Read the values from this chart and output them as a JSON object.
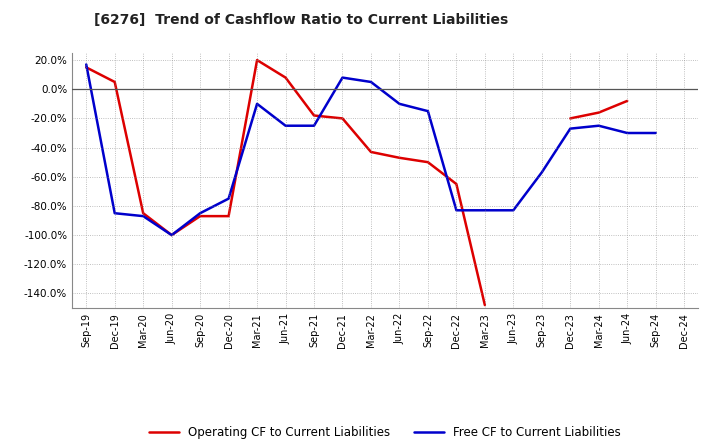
{
  "title": "[6276]  Trend of Cashflow Ratio to Current Liabilities",
  "x_labels": [
    "Sep-19",
    "Dec-19",
    "Mar-20",
    "Jun-20",
    "Sep-20",
    "Dec-20",
    "Mar-21",
    "Jun-21",
    "Sep-21",
    "Dec-21",
    "Mar-22",
    "Jun-22",
    "Sep-22",
    "Dec-22",
    "Mar-23",
    "Jun-23",
    "Sep-23",
    "Dec-23",
    "Mar-24",
    "Jun-24",
    "Sep-24",
    "Dec-24"
  ],
  "operating_cf": [
    15.0,
    5.0,
    -85.0,
    -100.0,
    -87.0,
    -87.0,
    20.0,
    8.0,
    -18.0,
    -20.0,
    -43.0,
    -47.0,
    -50.0,
    -65.0,
    -148.0,
    null,
    null,
    -20.0,
    -16.0,
    -8.0,
    null,
    null
  ],
  "free_cf": [
    17.0,
    -85.0,
    -87.0,
    -100.0,
    -85.0,
    -75.0,
    -10.0,
    -25.0,
    -25.0,
    8.0,
    5.0,
    -10.0,
    -15.0,
    -83.0,
    -83.0,
    -83.0,
    -57.0,
    -27.0,
    -25.0,
    -30.0,
    -30.0,
    null
  ],
  "operating_cf_color": "#dd0000",
  "free_cf_color": "#0000cc",
  "ylim": [
    -150,
    25
  ],
  "yticks": [
    20.0,
    0.0,
    -20.0,
    -40.0,
    -60.0,
    -80.0,
    -100.0,
    -120.0,
    -140.0
  ],
  "background_color": "#ffffff",
  "plot_bg_color": "#ffffff",
  "grid_color": "#888888",
  "legend_op": "Operating CF to Current Liabilities",
  "legend_free": "Free CF to Current Liabilities",
  "line_width": 1.8
}
